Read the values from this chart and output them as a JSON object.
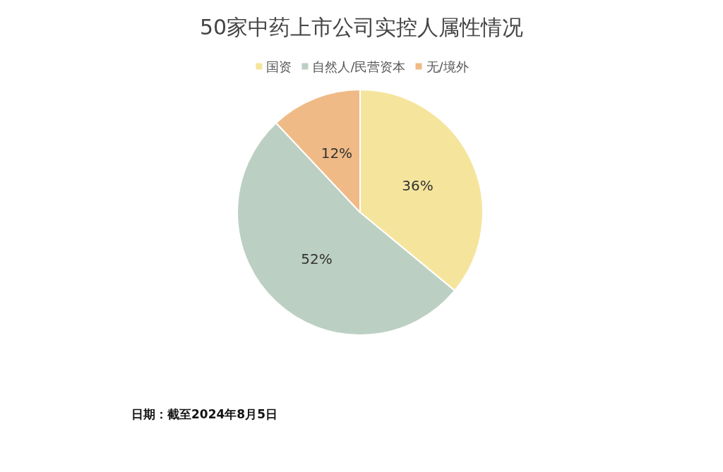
{
  "chart_data": {
    "type": "pie",
    "title": "50家中药上市公司实控人属性情况",
    "categories": [
      "国资",
      "自然人/民营资本",
      "无/境外"
    ],
    "values": [
      36,
      52,
      12
    ],
    "colors": [
      "#f5e59c",
      "#bccfc3",
      "#f0ba86"
    ],
    "value_labels": [
      "36%",
      "52%",
      "12%"
    ],
    "legend": "top",
    "annotations": [
      "日期：截至2024年8月5日"
    ]
  }
}
